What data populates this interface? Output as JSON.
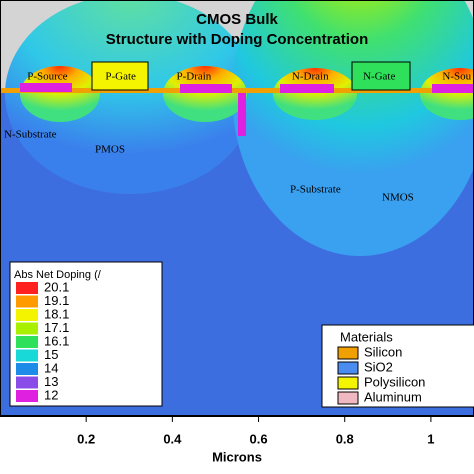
{
  "chart_data": {
    "type": "contour",
    "title": "CMOS Bulk",
    "subtitle": "Structure with Doping Concentration",
    "xlabel": "Microns",
    "xlim": [
      0,
      1.1
    ],
    "xticks": [
      0.2,
      0.4,
      0.6,
      0.8,
      1
    ],
    "regions": [
      {
        "label": "P-Source",
        "x": 0.11
      },
      {
        "label": "P-Gate",
        "x": 0.28
      },
      {
        "label": "P-Drain",
        "x": 0.45
      },
      {
        "label": "N-Drain",
        "x": 0.72
      },
      {
        "label": "N-Gate",
        "x": 0.88
      },
      {
        "label": "N-Sou",
        "x": 1.06
      }
    ],
    "annotations": [
      "N-Substrate",
      "PMOS",
      "P-Substrate",
      "NMOS"
    ],
    "colorbar": {
      "title": "Abs Net Doping (/",
      "levels": [
        20.1,
        19.1,
        18.1,
        17.1,
        16.1,
        15,
        14,
        13,
        12
      ],
      "colors": [
        "#ff2020",
        "#ff9a00",
        "#f4f400",
        "#a8f000",
        "#2ee05a",
        "#18d8d8",
        "#1c8ce8",
        "#8a4ce8",
        "#e020e0"
      ]
    },
    "materials": {
      "title": "Materials",
      "items": [
        {
          "name": "Silicon",
          "color": "#f0a000"
        },
        {
          "name": "SiO2",
          "color": "#4a8cf0"
        },
        {
          "name": "Polysilicon",
          "color": "#f4f400"
        },
        {
          "name": "Aluminum",
          "color": "#f0b8c0"
        }
      ]
    }
  }
}
